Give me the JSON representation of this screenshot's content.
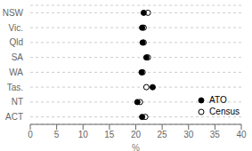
{
  "chart_data": {
    "type": "scatter",
    "orientation": "horizontal",
    "categories": [
      "NSW",
      "Vic.",
      "Qld",
      "SA",
      "WA",
      "Tas.",
      "NT",
      "ACT"
    ],
    "series": [
      {
        "name": "ATO",
        "color": "black",
        "marker": "circle",
        "values": [
          21.5,
          21.2,
          21.3,
          22.0,
          21.1,
          23.2,
          20.3,
          21.2
        ]
      },
      {
        "name": "Census",
        "color": "black",
        "marker": "open_circle",
        "values": [
          22.3,
          21.5,
          21.5,
          22.3,
          21.3,
          22.0,
          20.8,
          21.8
        ]
      }
    ],
    "xlabel": "%",
    "xlim": [
      0,
      40
    ],
    "xticks": [
      0,
      5,
      10,
      15,
      20,
      25,
      30,
      35,
      40
    ],
    "grid": true,
    "legend": "lower right"
  }
}
